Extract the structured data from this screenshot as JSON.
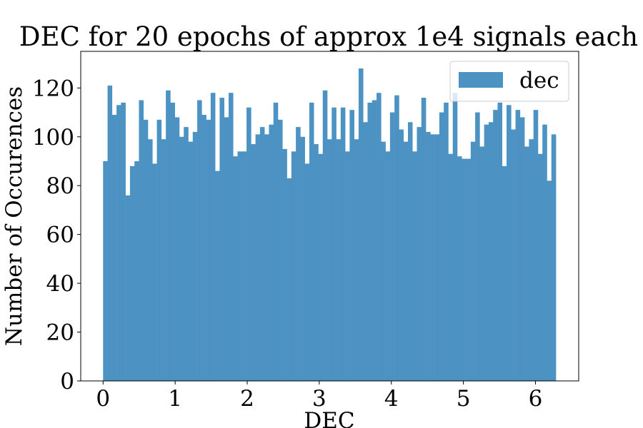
{
  "chart_data": {
    "type": "bar",
    "title": "DEC for 20 epochs of approx 1e4 signals each",
    "xlabel": "DEC",
    "ylabel": "Number of Occurences",
    "xlim": [
      -0.31,
      6.6
    ],
    "ylim": [
      0,
      135
    ],
    "xticks": [
      0,
      1,
      2,
      3,
      4,
      5,
      6
    ],
    "yticks": [
      0,
      20,
      40,
      60,
      80,
      100,
      120
    ],
    "bin_start": 0,
    "bin_end": 6.2832,
    "color": "#4c92c3",
    "legend": {
      "placement": "top-right",
      "entries": [
        "dec"
      ]
    },
    "series": [
      {
        "name": "dec",
        "values": [
          90,
          121,
          109,
          113,
          114,
          76,
          88,
          90,
          115,
          107,
          99,
          89,
          107,
          99,
          119,
          114,
          108,
          100,
          104,
          98,
          102,
          115,
          109,
          107,
          118,
          86,
          116,
          108,
          118,
          92,
          94,
          94,
          112,
          97,
          101,
          104,
          101,
          105,
          114,
          107,
          95,
          83,
          94,
          104,
          100,
          89,
          114,
          97,
          93,
          119,
          99,
          112,
          99,
          112,
          94,
          111,
          99,
          128,
          106,
          114,
          115,
          118,
          98,
          94,
          110,
          117,
          103,
          98,
          106,
          94,
          104,
          116,
          102,
          101,
          101,
          110,
          114,
          93,
          118,
          92,
          91,
          91,
          98,
          110,
          96,
          105,
          106,
          111,
          114,
          88,
          113,
          103,
          111,
          108,
          96,
          99,
          111,
          93,
          105,
          82,
          101
        ]
      }
    ]
  }
}
